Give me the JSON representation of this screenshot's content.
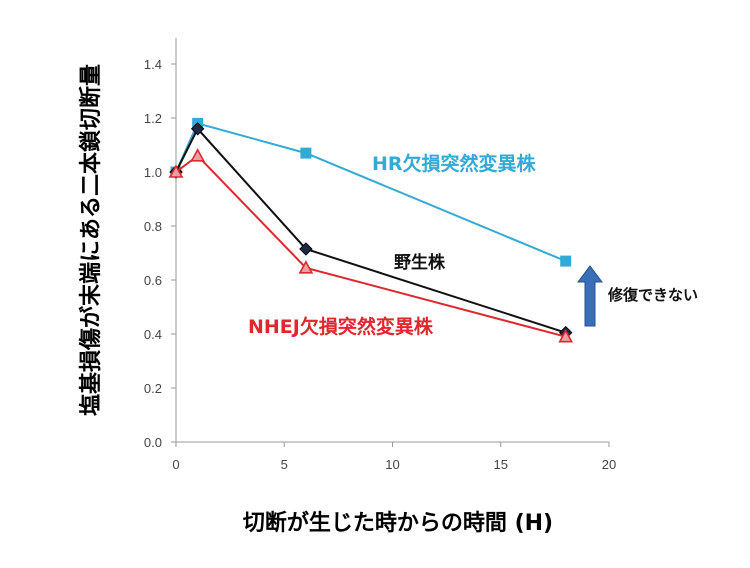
{
  "chart_data": {
    "type": "line",
    "xlabel": "切断が生じた時からの時間 (H)",
    "ylabel": "塩基損傷が末端にある二本鎖切断量",
    "xlim": [
      0,
      20
    ],
    "ylim": [
      0,
      1.4
    ],
    "x_ticks": [
      "0",
      "5",
      "10",
      "15",
      "20"
    ],
    "y_ticks": [
      "0.0",
      "0.2",
      "0.4",
      "0.6",
      "0.8",
      "1.0",
      "1.2",
      "1.4"
    ],
    "grid": false,
    "series": [
      {
        "name": "HR欠損突然変異株",
        "color": "#33a9d6",
        "marker": "square",
        "points": [
          [
            0,
            1.0
          ],
          [
            1,
            1.18
          ],
          [
            6,
            1.07
          ],
          [
            18,
            0.67
          ]
        ]
      },
      {
        "name": "野生株",
        "color": "#111111",
        "marker": "diamond",
        "points": [
          [
            0,
            1.0
          ],
          [
            1,
            1.16
          ],
          [
            6,
            0.715
          ],
          [
            18,
            0.405
          ]
        ]
      },
      {
        "name": "NHEJ欠損突然変異株",
        "color": "#e0262e",
        "marker": "triangle",
        "points": [
          [
            0,
            1.0
          ],
          [
            1,
            1.06
          ],
          [
            6,
            0.645
          ],
          [
            18,
            0.39
          ]
        ]
      }
    ],
    "annotation": {
      "text": "修復できない",
      "arrow": "up",
      "arrow_color": "#3a6fb8"
    }
  }
}
